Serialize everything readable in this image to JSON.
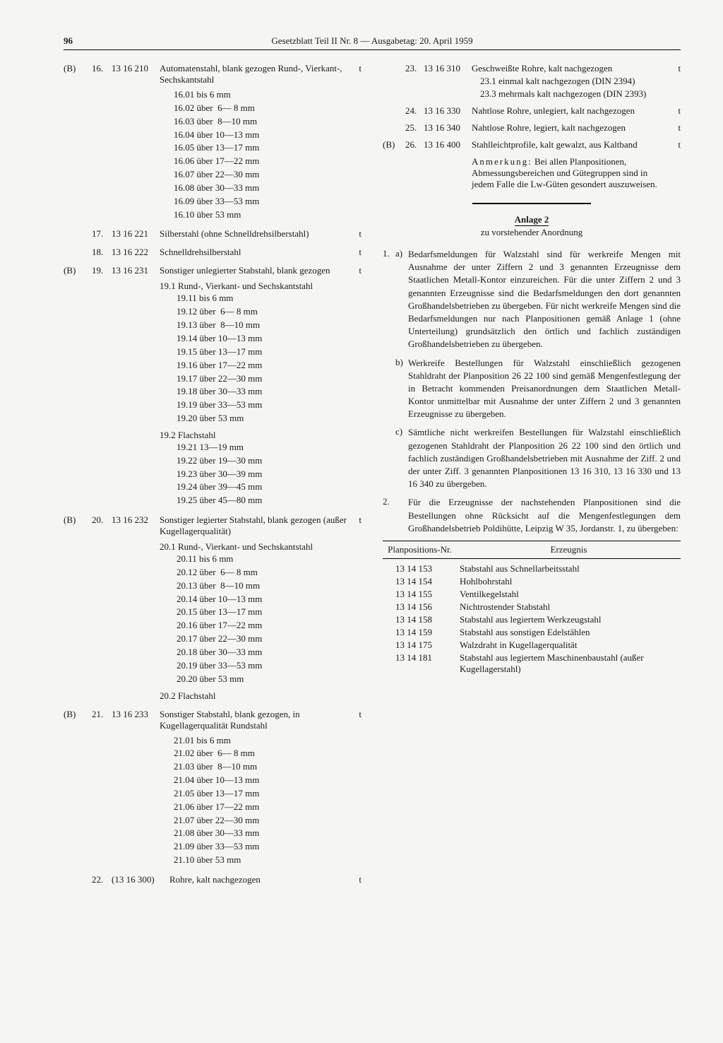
{
  "pageNumber": "96",
  "headerTitle": "Gesetzblatt Teil II Nr. 8 — Ausgabetag: 20. April 1959",
  "leftEntries": [
    {
      "pre": "(B)",
      "num": "16.",
      "code": "13 16 210",
      "unit": "t",
      "title": "Automatenstahl, blank gezogen Rund-, Vierkant-, Sechskantstahl",
      "lines": [
        "16.01 bis 6 mm",
        "16.02 über  6— 8 mm",
        "16.03 über  8—10 mm",
        "16.04 über 10—13 mm",
        "16.05 über 13—17 mm",
        "16.06 über 17—22 mm",
        "16.07 über 22—30 mm",
        "16.08 über 30—33 mm",
        "16.09 über 33—53 mm",
        "16.10 über 53 mm"
      ]
    },
    {
      "pre": "",
      "num": "17.",
      "code": "13 16 221",
      "unit": "t",
      "title": "Silberstahl (ohne Schnelldrehsilberstahl)"
    },
    {
      "pre": "",
      "num": "18.",
      "code": "13 16 222",
      "unit": "t",
      "title": "Schnelldrehsilberstahl"
    },
    {
      "pre": "(B)",
      "num": "19.",
      "code": "13 16 231",
      "unit": "t",
      "title": "Sonstiger unlegierter Stabstahl, blank gezogen",
      "subgroups": [
        {
          "head": "19.1 Rund-, Vierkant- und Sechskantstahl",
          "lines": [
            "19.11 bis 6 mm",
            "19.12 über  6— 8 mm",
            "19.13 über  8—10 mm",
            "19.14 über 10—13 mm",
            "19.15 über 13—17 mm",
            "19.16 über 17—22 mm",
            "19.17 über 22—30 mm",
            "19.18 über 30—33 mm",
            "19.19 über 33—53 mm",
            "19.20 über 53 mm"
          ]
        },
        {
          "head": "19.2 Flachstahl",
          "lines": [
            "19.21 13—19 mm",
            "19.22 über 19—30 mm",
            "19.23 über 30—39 mm",
            "19.24 über 39—45 mm",
            "19.25 über 45—80 mm"
          ]
        }
      ]
    },
    {
      "pre": "(B)",
      "num": "20.",
      "code": "13 16 232",
      "unit": "t",
      "title": "Sonstiger legierter Stabstahl, blank gezogen (außer Kugellagerqualität)",
      "subgroups": [
        {
          "head": "20.1 Rund-, Vierkant- und Sechskantstahl",
          "lines": [
            "20.11 bis 6 mm",
            "20.12 über  6— 8 mm",
            "20.13 über  8—10 mm",
            "20.14 über 10—13 mm",
            "20.15 über 13—17 mm",
            "20.16 über 17—22 mm",
            "20.17 über 22—30 mm",
            "20.18 über 30—33 mm",
            "20.19 über 33—53 mm",
            "20.20 über 53 mm"
          ]
        },
        {
          "head": "20.2 Flachstahl",
          "lines": []
        }
      ]
    },
    {
      "pre": "(B)",
      "num": "21.",
      "code": "13 16 233",
      "unit": "t",
      "title": "Sonstiger Stabstahl, blank gezogen, in Kugellagerqualität Rundstahl",
      "lines": [
        "21.01 bis 6 mm",
        "21.02 über  6— 8 mm",
        "21.03 über  8—10 mm",
        "21.04 über 10—13 mm",
        "21.05 über 13—17 mm",
        "21.06 über 17—22 mm",
        "21.07 über 22—30 mm",
        "21.08 über 30—33 mm",
        "21.09 über 33—53 mm",
        "21.10 über 53 mm"
      ]
    },
    {
      "pre": "",
      "num": "22.",
      "code": "(13 16 300)",
      "unit": "t",
      "title": "Rohre, kalt nachgezogen"
    }
  ],
  "rightEntries": [
    {
      "pre": "",
      "num": "23.",
      "code": "13 16 310",
      "unit": "t",
      "title": "Geschweißte Rohre, kalt nachgezogen",
      "sublines": [
        "23.1 einmal kalt nachgezogen (DIN 2394)",
        "23.3 mehrmals kalt nachgezogen (DIN 2393)"
      ]
    },
    {
      "pre": "",
      "num": "24.",
      "code": "13 16 330",
      "unit": "t",
      "title": "Nahtlose Rohre, unlegiert, kalt nachgezogen"
    },
    {
      "pre": "",
      "num": "25.",
      "code": "13 16 340",
      "unit": "t",
      "title": "Nahtlose Rohre, legiert, kalt nachgezogen"
    },
    {
      "pre": "(B)",
      "num": "26.",
      "code": "13 16 400",
      "unit": "t",
      "title": "Stahlleichtprofile, kalt gewalzt, aus Kaltband"
    }
  ],
  "anmerkung": {
    "label": "Anmerkung:",
    "text": "Bei allen Planpositionen, Abmessungsbereichen und Gütegruppen sind in jedem Falle die Lw-Güten gesondert auszuweisen."
  },
  "anlage": {
    "title": "Anlage 2",
    "subtitle": "zu vorstehender Anordnung"
  },
  "listItems": [
    {
      "n": "1.",
      "let": "a)",
      "text": "Bedarfsmeldungen für Walzstahl sind für werkreife Mengen mit Ausnahme der unter Ziffern 2 und 3 genannten Erzeugnisse dem Staatlichen Metall-Kontor einzureichen. Für die unter Ziffern 2 und 3 genannten Erzeugnisse sind die Bedarfsmeldungen den dort genannten Großhandelsbetrieben zu übergeben. Für nicht werkreife Mengen sind die Bedarfsmeldungen nur nach Planpositionen gemäß Anlage 1 (ohne Unterteilung) grundsätzlich den örtlich und fachlich zuständigen Großhandelsbetrieben zu übergeben."
    },
    {
      "n": "",
      "let": "b)",
      "text": "Werkreife Bestellungen für Walzstahl einschließlich gezogenen Stahldraht der Planposition 26 22 100 sind gemäß Mengenfestlegung der in Betracht kommenden Preisanordnungen dem Staatlichen Metall-Kontor unmittelbar mit Ausnahme der unter Ziffern 2 und 3 genannten Erzeugnisse zu übergeben."
    },
    {
      "n": "",
      "let": "c)",
      "text": "Sämtliche nicht werkreifen Bestellungen für Walzstahl einschließlich gezogenen Stahldraht der Planposition 26 22 100 sind den örtlich und fachlich zuständigen Großhandelsbetrieben mit Ausnahme der Ziff. 2 und der unter Ziff. 3 genannten Planpositionen 13 16 310, 13 16 330 und 13 16 340 zu übergeben."
    },
    {
      "n": "2.",
      "let": "",
      "text": "Für die Erzeugnisse der nachstehenden Planpositionen sind die Bestellungen ohne Rücksicht auf die Mengenfestlegungen dem Großhandelsbetrieb Poldihütte, Leipzig W 35, Jordanstr. 1, zu übergeben:"
    }
  ],
  "table": {
    "headers": [
      "Planpositions-Nr.",
      "Erzeugnis"
    ],
    "rows": [
      [
        "13 14 153",
        "Stabstahl aus Schnellarbeitsstahl"
      ],
      [
        "13 14 154",
        "Hohlbohrstahl"
      ],
      [
        "13 14 155",
        "Ventilkegelstahl"
      ],
      [
        "13 14 156",
        "Nichtrostender Stabstahl"
      ],
      [
        "13 14 158",
        "Stabstahl aus legiertem Werkzeugstahl"
      ],
      [
        "13 14 159",
        "Stabstahl aus sonstigen Edelstählen"
      ],
      [
        "13 14 175",
        "Walzdraht in Kugellagerqualität"
      ],
      [
        "13 14 181",
        "Stabstahl aus legiertem Maschinenbaustahl (außer Kugellagerstahl)"
      ]
    ]
  }
}
